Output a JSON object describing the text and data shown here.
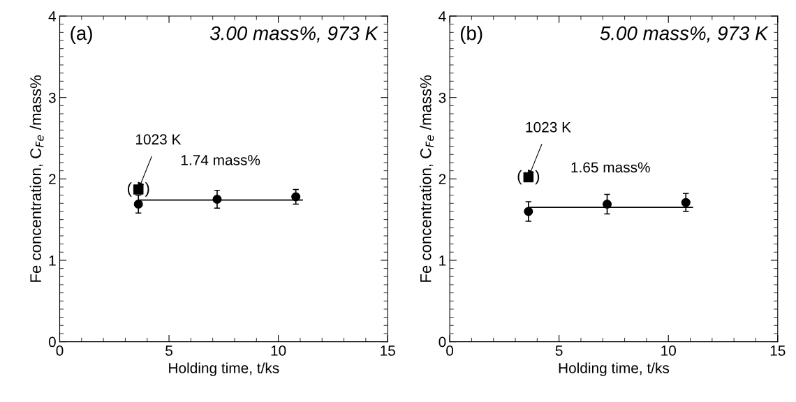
{
  "chart_data": [
    {
      "type": "scatter",
      "xlabel": "Holding time, t/ks",
      "ylabel": "Fe concentration, C$_{Fe}$ /mass%",
      "xlim": [
        0,
        15
      ],
      "xticks": [
        0,
        5,
        10,
        15
      ],
      "ylim": [
        0,
        4
      ],
      "yticks": [
        0,
        1,
        2,
        3,
        4
      ],
      "grid": false,
      "legend": false,
      "annotations": [
        "(a)",
        "3.00 mass%, 973 K",
        {
          "text": "1023 K",
          "x": 3.6,
          "y": 1.87
        },
        "1.74 mass%",
        "(   )"
      ],
      "series": [
        {
          "marker": "circle",
          "color": "#000000",
          "x": [
            3.6,
            7.2,
            10.8
          ],
          "values": [
            1.69,
            1.75,
            1.78
          ],
          "errors": [
            0.11,
            0.11,
            0.09
          ]
        },
        {
          "marker": "square",
          "color": "#000000",
          "x": [
            3.6
          ],
          "values": [
            1.87
          ]
        },
        {
          "type": "line",
          "marker": "none",
          "line_style": "solid",
          "color": "#000000",
          "x": [
            3.6,
            11.1
          ],
          "values": [
            1.74,
            1.74
          ]
        }
      ]
    },
    {
      "type": "scatter",
      "xlabel": "Holding time, t/ks",
      "ylabel": "Fe concentration, C$_{Fe}$ /mass%",
      "xlim": [
        0,
        15
      ],
      "xticks": [
        0,
        5,
        10,
        15
      ],
      "ylim": [
        0,
        4
      ],
      "yticks": [
        0,
        1,
        2,
        3,
        4
      ],
      "grid": false,
      "legend": false,
      "annotations": [
        "(b)",
        "5.00 mass%, 973 K",
        {
          "text": "1023 K",
          "x": 3.6,
          "y": 2.02
        },
        "1.65 mass%",
        "(   )"
      ],
      "series": [
        {
          "marker": "circle",
          "color": "#000000",
          "x": [
            3.6,
            7.2,
            10.8
          ],
          "values": [
            1.6,
            1.69,
            1.71
          ],
          "errors": [
            0.12,
            0.12,
            0.11
          ]
        },
        {
          "marker": "square",
          "color": "#000000",
          "x": [
            3.6
          ],
          "values": [
            2.02
          ]
        },
        {
          "type": "line",
          "marker": "none",
          "line_style": "solid",
          "color": "#000000",
          "x": [
            3.6,
            11.1
          ],
          "values": [
            1.65,
            1.65
          ]
        }
      ]
    }
  ]
}
